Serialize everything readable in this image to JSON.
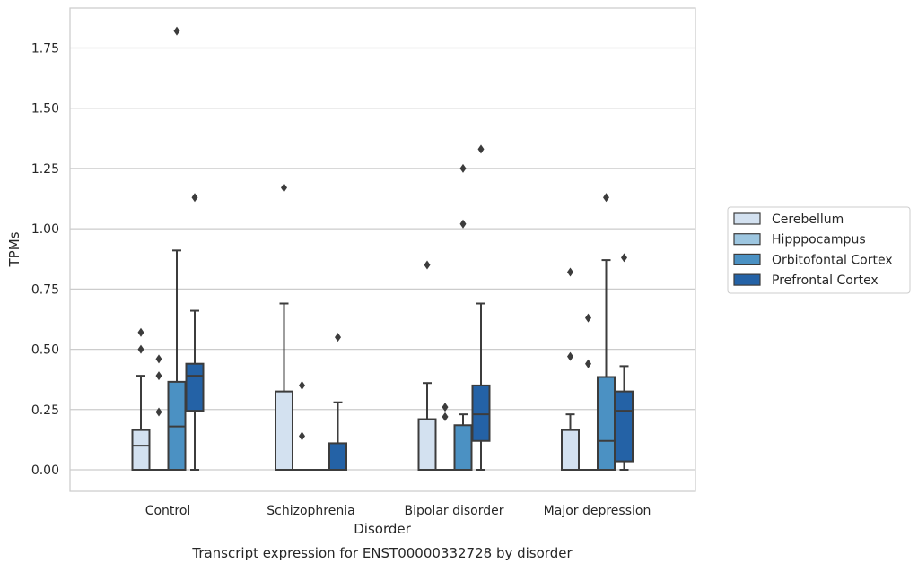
{
  "chart_data": {
    "type": "boxplot",
    "title": "",
    "caption": "Transcript expression for ENST00000332728 by disorder",
    "xlabel": "Disorder",
    "ylabel": "TPMs",
    "ylim": [
      -0.09,
      1.91
    ],
    "yticks": [
      "0.00",
      "0.25",
      "0.50",
      "0.75",
      "1.00",
      "1.25",
      "1.50",
      "1.75"
    ],
    "ytick_values": [
      0,
      0.25,
      0.5,
      0.75,
      1.0,
      1.25,
      1.5,
      1.75
    ],
    "grid": true,
    "legend_position": "right",
    "categories": [
      "Control",
      "Schizophrenia",
      "Bipolar disorder",
      "Major depression"
    ],
    "series": [
      {
        "name": "Cerebellum",
        "color": "#d3e1f0",
        "boxes": [
          {
            "whisker_low": 0,
            "q1": 0,
            "median": 0.1,
            "q3": 0.165,
            "whisker_high": 0.39,
            "outliers": [
              0.5,
              0.57
            ]
          },
          {
            "whisker_low": 0,
            "q1": 0,
            "median": 0,
            "q3": 0.325,
            "whisker_high": 0.69,
            "outliers": [
              1.17
            ]
          },
          {
            "whisker_low": 0,
            "q1": 0,
            "median": 0,
            "q3": 0.21,
            "whisker_high": 0.36,
            "outliers": [
              0.85
            ]
          },
          {
            "whisker_low": 0,
            "q1": 0,
            "median": 0,
            "q3": 0.165,
            "whisker_high": 0.23,
            "outliers": [
              0.47,
              0.82
            ]
          }
        ]
      },
      {
        "name": "Hipppocampus",
        "color": "#9dc6e0",
        "boxes": [
          {
            "whisker_low": 0,
            "q1": 0,
            "median": 0,
            "q3": 0,
            "whisker_high": 0,
            "outliers": [
              0.24,
              0.39,
              0.46
            ]
          },
          {
            "whisker_low": 0,
            "q1": 0,
            "median": 0,
            "q3": 0,
            "whisker_high": 0,
            "outliers": [
              0.14,
              0.35
            ]
          },
          {
            "whisker_low": 0,
            "q1": 0,
            "median": 0,
            "q3": 0,
            "whisker_high": 0,
            "outliers": [
              0.22,
              0.26
            ]
          },
          {
            "whisker_low": 0,
            "q1": 0,
            "median": 0,
            "q3": 0,
            "whisker_high": 0,
            "outliers": [
              0.44,
              0.63
            ]
          }
        ]
      },
      {
        "name": "Orbitofontal Cortex",
        "color": "#4b91c3",
        "boxes": [
          {
            "whisker_low": 0,
            "q1": 0,
            "median": 0.18,
            "q3": 0.365,
            "whisker_high": 0.91,
            "outliers": [
              1.82
            ]
          },
          {
            "whisker_low": 0,
            "q1": 0,
            "median": 0,
            "q3": 0,
            "whisker_high": 0,
            "outliers": []
          },
          {
            "whisker_low": 0,
            "q1": 0,
            "median": 0,
            "q3": 0.185,
            "whisker_high": 0.23,
            "outliers": [
              1.02,
              1.25
            ]
          },
          {
            "whisker_low": 0,
            "q1": 0,
            "median": 0.12,
            "q3": 0.385,
            "whisker_high": 0.87,
            "outliers": [
              1.13
            ]
          }
        ]
      },
      {
        "name": "Prefrontal Cortex",
        "color": "#2462a6",
        "boxes": [
          {
            "whisker_low": 0,
            "q1": 0.245,
            "median": 0.39,
            "q3": 0.44,
            "whisker_high": 0.66,
            "outliers": [
              1.13
            ]
          },
          {
            "whisker_low": 0,
            "q1": 0,
            "median": 0,
            "q3": 0.11,
            "whisker_high": 0.28,
            "outliers": [
              0.55
            ]
          },
          {
            "whisker_low": 0,
            "q1": 0.12,
            "median": 0.23,
            "q3": 0.35,
            "whisker_high": 0.69,
            "outliers": [
              1.33
            ]
          },
          {
            "whisker_low": 0,
            "q1": 0.035,
            "median": 0.245,
            "q3": 0.325,
            "whisker_high": 0.43,
            "outliers": [
              0.88
            ]
          }
        ]
      }
    ]
  }
}
